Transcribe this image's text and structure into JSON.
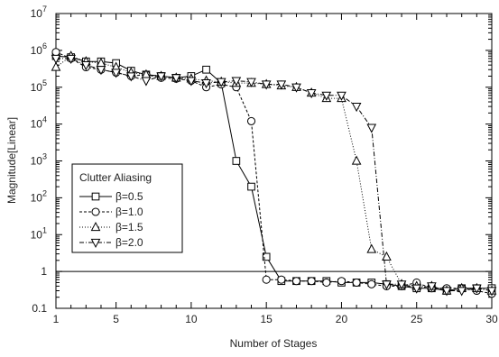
{
  "chart_data": {
    "type": "line",
    "title": "",
    "xlabel": "Number of Stages",
    "ylabel": "Magnitude[Linear]",
    "xlim": [
      1,
      30
    ],
    "ylim": [
      0.1,
      10000000
    ],
    "yscale": "log",
    "grid": false,
    "legend_placement": "lower-left",
    "xticks": [
      1,
      5,
      10,
      15,
      20,
      25,
      30
    ],
    "xtick_labels": [
      "1",
      "5",
      "10",
      "15",
      "20",
      "25",
      "30"
    ],
    "yticks": [
      0.1,
      1,
      10,
      100,
      1000,
      10000,
      100000,
      1000000,
      10000000
    ],
    "ytick_labels": [
      {
        "base": "0.1",
        "exp": ""
      },
      {
        "base": "1",
        "exp": ""
      },
      {
        "base": "10",
        "exp": "1"
      },
      {
        "base": "10",
        "exp": "2"
      },
      {
        "base": "10",
        "exp": "3"
      },
      {
        "base": "10",
        "exp": "4"
      },
      {
        "base": "10",
        "exp": "5"
      },
      {
        "base": "10",
        "exp": "6"
      },
      {
        "base": "10",
        "exp": "7"
      }
    ],
    "reference_line": {
      "y": 1
    },
    "legend_title": "Clutter Aliasing",
    "series": [
      {
        "name": "β=0.5",
        "marker": "square",
        "dash": "",
        "x": [
          1,
          2,
          3,
          4,
          5,
          6,
          7,
          8,
          9,
          10,
          11,
          12,
          13,
          14,
          15,
          16,
          17,
          18,
          19,
          20,
          21,
          22,
          23,
          24,
          25,
          26,
          27,
          28,
          29,
          30
        ],
        "y": [
          700000,
          650000,
          500000,
          500000,
          450000,
          280000,
          220000,
          200000,
          180000,
          200000,
          300000,
          130000,
          1000,
          200,
          2.5,
          0.55,
          0.55,
          0.55,
          0.55,
          0.5,
          0.5,
          0.5,
          0.45,
          0.4,
          0.35,
          0.35,
          0.3,
          0.35,
          0.35,
          0.35
        ]
      },
      {
        "name": "β=1.0",
        "marker": "circle",
        "dash": "3,2",
        "x": [
          1,
          2,
          3,
          4,
          5,
          6,
          7,
          8,
          9,
          10,
          11,
          12,
          13,
          14,
          15,
          16,
          17,
          18,
          19,
          20,
          21,
          22,
          23,
          24,
          25,
          26,
          27,
          28,
          29,
          30
        ],
        "y": [
          900000,
          600000,
          350000,
          300000,
          250000,
          200000,
          220000,
          180000,
          170000,
          150000,
          100000,
          120000,
          100000,
          12000,
          0.6,
          0.6,
          0.55,
          0.55,
          0.5,
          0.55,
          0.5,
          0.45,
          0.4,
          0.4,
          0.5,
          0.35,
          0.35,
          0.35,
          0.3,
          0.25
        ]
      },
      {
        "name": "β=1.5",
        "marker": "triangle-up",
        "dash": "1,2",
        "x": [
          1,
          2,
          3,
          4,
          5,
          6,
          7,
          8,
          9,
          10,
          11,
          12,
          13,
          14,
          15,
          16,
          17,
          18,
          19,
          20,
          21,
          22,
          23,
          24,
          25,
          26,
          27,
          28,
          29,
          30
        ],
        "y": [
          350000,
          700000,
          500000,
          450000,
          350000,
          250000,
          220000,
          200000,
          180000,
          170000,
          150000,
          140000,
          130000,
          130000,
          120000,
          110000,
          100000,
          70000,
          50000,
          50000,
          1000,
          4,
          2.5,
          0.45,
          0.4,
          0.4,
          0.3,
          0.35,
          0.35,
          0.3
        ]
      },
      {
        "name": "β=2.0",
        "marker": "triangle-down",
        "dash": "5,2,1,2",
        "x": [
          1,
          2,
          3,
          4,
          5,
          6,
          7,
          8,
          9,
          10,
          11,
          12,
          13,
          14,
          15,
          16,
          17,
          18,
          19,
          20,
          21,
          22,
          23,
          24,
          25,
          26,
          27,
          28,
          29,
          30
        ],
        "y": [
          600000,
          600000,
          400000,
          300000,
          250000,
          200000,
          150000,
          200000,
          180000,
          150000,
          130000,
          140000,
          150000,
          140000,
          120000,
          120000,
          100000,
          70000,
          60000,
          60000,
          30000,
          8000,
          0.45,
          0.45,
          0.35,
          0.4,
          0.3,
          0.3,
          0.35,
          0.3
        ]
      }
    ]
  }
}
